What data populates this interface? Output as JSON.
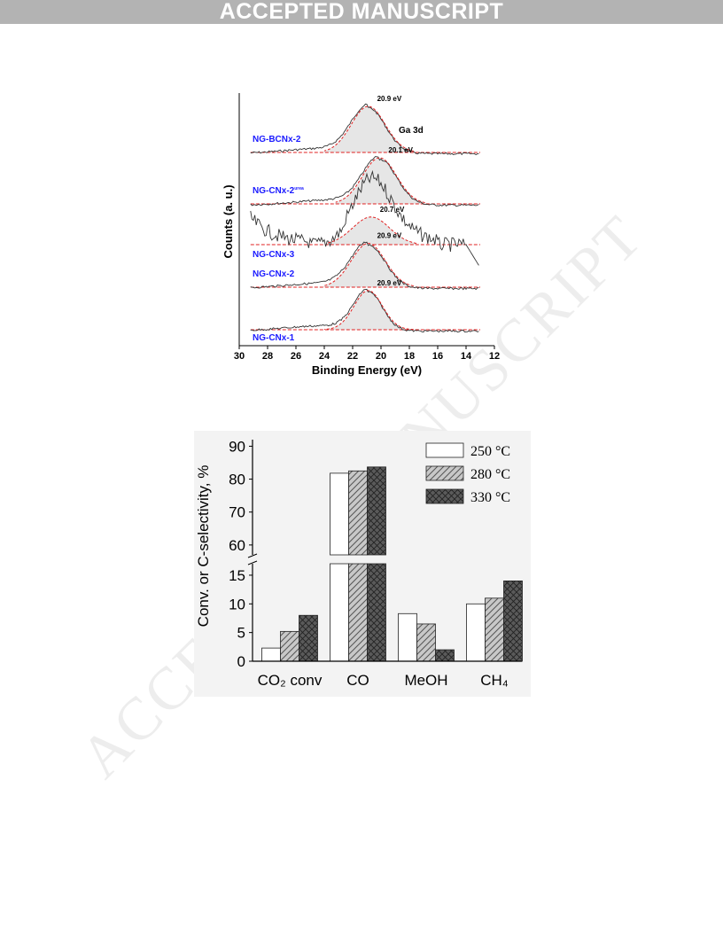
{
  "banner": "ACCEPTED MANUSCRIPT",
  "watermark": "ACCEPTED MANUSCRIPT",
  "chart_data": [
    {
      "type": "line",
      "xlabel": "Binding Energy (eV)",
      "ylabel": "Counts (a. u.)",
      "xlim": [
        30,
        12
      ],
      "xticks": [
        30,
        28,
        26,
        24,
        22,
        20,
        18,
        16,
        14,
        12
      ],
      "annotation": "Ga 3d",
      "series": [
        {
          "name": "NG-BCNx-2",
          "name_sup": "",
          "peak_label": "20.9 eV",
          "peak": 20.9,
          "width": 1.2,
          "rel_height": 1.0,
          "noisy": false
        },
        {
          "name": "NG-CNx-2",
          "name_sup": "urea",
          "peak_label": "20.1 eV",
          "peak": 20.1,
          "width": 1.2,
          "rel_height": 1.0,
          "noisy": false
        },
        {
          "name": "NG-CNx-3",
          "name_sup": "",
          "peak_label": "20.7 eV",
          "peak": 20.7,
          "width": 1.3,
          "rel_height": 0.6,
          "noisy": true
        },
        {
          "name": "NG-CNx-2",
          "name_sup": "",
          "peak_label": "20.9 eV",
          "peak": 20.9,
          "width": 1.2,
          "rel_height": 0.95,
          "noisy": false
        },
        {
          "name": "NG-CNx-1",
          "name_sup": "",
          "peak_label": "20.9 eV",
          "peak": 20.9,
          "width": 1.0,
          "rel_height": 0.85,
          "noisy": false
        }
      ]
    },
    {
      "type": "bar",
      "ylabel": "Conv. or C-selectivity, %",
      "categories": [
        "CO₂ conv",
        "CO",
        "MeOH",
        "CH₄"
      ],
      "series": [
        {
          "name": "250 °C",
          "values": [
            2.3,
            81.8,
            8.3,
            10.0
          ]
        },
        {
          "name": "280 °C",
          "values": [
            5.2,
            82.5,
            6.5,
            11.0
          ]
        },
        {
          "name": "330 °C",
          "values": [
            8.0,
            83.7,
            2.0,
            14.0
          ]
        }
      ],
      "lower_axis": {
        "ylim": [
          0,
          17
        ],
        "ticks": [
          0,
          5,
          10,
          15
        ]
      },
      "upper_axis": {
        "ylim": [
          57,
          92
        ],
        "ticks": [
          60,
          70,
          80,
          90
        ]
      },
      "legend": "top-right",
      "colors": {
        "250": "#ffffff",
        "280": "#c8c8c8",
        "330": "#5a5a5a"
      }
    }
  ]
}
